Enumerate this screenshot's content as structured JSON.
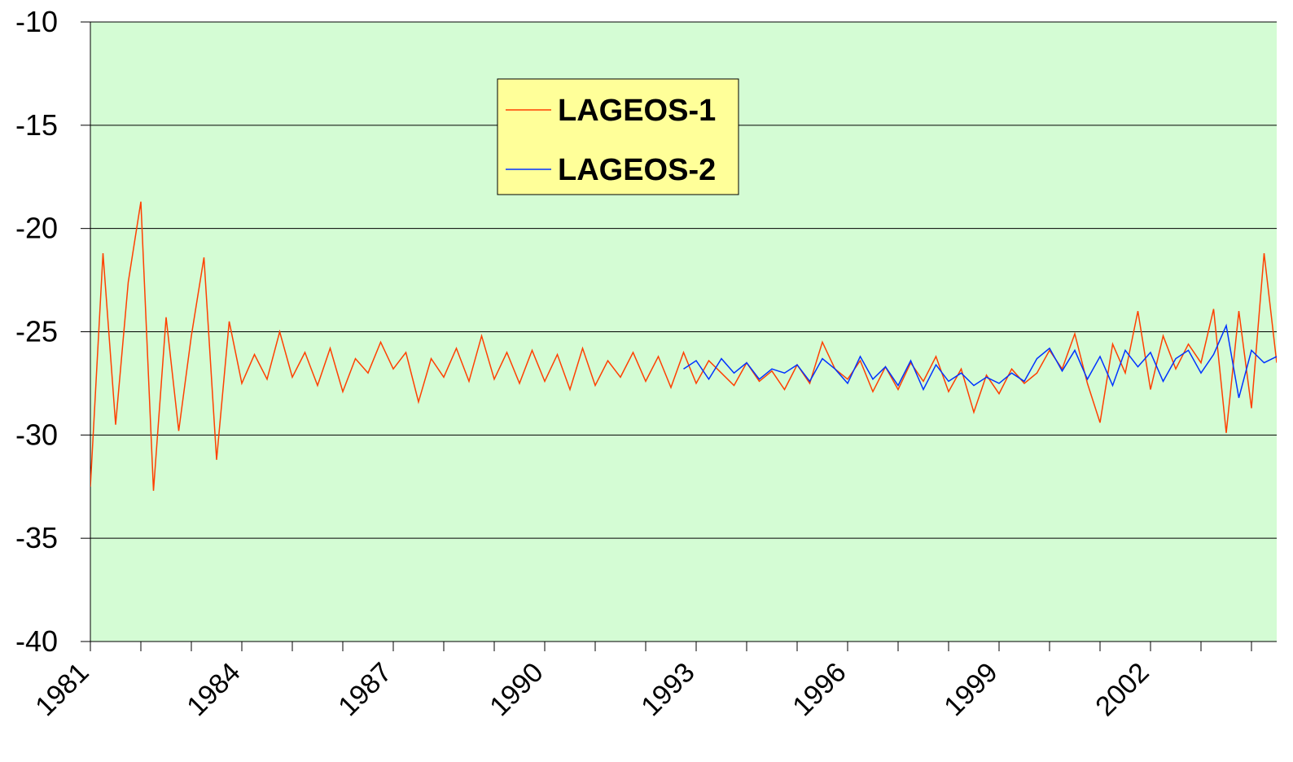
{
  "chart_data": {
    "type": "line",
    "xlim": [
      1981,
      2004.5
    ],
    "ylim": [
      -40,
      -10
    ],
    "xticks": [
      1981,
      1984,
      1987,
      1990,
      1993,
      1996,
      1999,
      2002
    ],
    "xticks_minor": [
      1982,
      1983,
      1985,
      1986,
      1988,
      1989,
      1991,
      1992,
      1994,
      1995,
      1997,
      1998,
      2000,
      2001,
      2003,
      2004
    ],
    "yticks": [
      -40,
      -35,
      -30,
      -25,
      -20,
      -15,
      -10
    ],
    "grid": true,
    "legend": "upper center",
    "background": "#d4fcd4",
    "series": [
      {
        "name": "LAGEOS-1",
        "color": "#ff4000",
        "x": [
          1981,
          1981.25,
          1981.5,
          1981.75,
          1982,
          1982.25,
          1982.5,
          1982.75,
          1983,
          1983.25,
          1983.5,
          1983.75,
          1984,
          1984.25,
          1984.5,
          1984.75,
          1985,
          1985.25,
          1985.5,
          1985.75,
          1986,
          1986.25,
          1986.5,
          1986.75,
          1987,
          1987.25,
          1987.5,
          1987.75,
          1988,
          1988.25,
          1988.5,
          1988.75,
          1989,
          1989.25,
          1989.5,
          1989.75,
          1990,
          1990.25,
          1990.5,
          1990.75,
          1991,
          1991.25,
          1991.5,
          1991.75,
          1992,
          1992.25,
          1992.5,
          1992.75,
          1993,
          1993.25,
          1993.5,
          1993.75,
          1994,
          1994.25,
          1994.5,
          1994.75,
          1995,
          1995.25,
          1995.5,
          1995.75,
          1996,
          1996.25,
          1996.5,
          1996.75,
          1997,
          1997.25,
          1997.5,
          1997.75,
          1998,
          1998.25,
          1998.5,
          1998.75,
          1999,
          1999.25,
          1999.5,
          1999.75,
          2000,
          2000.25,
          2000.5,
          2000.75,
          2001,
          2001.25,
          2001.5,
          2001.75,
          2002,
          2002.25,
          2002.5,
          2002.75,
          2003,
          2003.25,
          2003.5,
          2003.75,
          2004,
          2004.25,
          2004.5
        ],
        "values": [
          -32.5,
          -21.2,
          -29.5,
          -22.6,
          -18.7,
          -32.7,
          -24.3,
          -29.8,
          -25.2,
          -21.4,
          -31.2,
          -24.5,
          -27.5,
          -26.1,
          -27.3,
          -25.0,
          -27.2,
          -26.0,
          -27.6,
          -25.8,
          -27.9,
          -26.3,
          -27.0,
          -25.5,
          -26.8,
          -26.0,
          -28.4,
          -26.3,
          -27.2,
          -25.8,
          -27.4,
          -25.2,
          -27.3,
          -26.0,
          -27.5,
          -25.9,
          -27.4,
          -26.1,
          -27.8,
          -25.8,
          -27.6,
          -26.4,
          -27.2,
          -26.0,
          -27.4,
          -26.2,
          -27.7,
          -26.0,
          -27.5,
          -26.4,
          -27.0,
          -27.6,
          -26.5,
          -27.4,
          -26.9,
          -27.8,
          -26.6,
          -27.5,
          -25.5,
          -26.8,
          -27.3,
          -26.4,
          -27.9,
          -26.7,
          -27.8,
          -26.5,
          -27.4,
          -26.2,
          -27.9,
          -26.8,
          -28.9,
          -27.1,
          -28.0,
          -26.8,
          -27.5,
          -27.0,
          -25.9,
          -26.8,
          -25.1,
          -27.5,
          -29.4,
          -25.6,
          -27.0,
          -24.0,
          -27.8,
          -25.2,
          -26.8,
          -25.6,
          -26.5,
          -23.9,
          -29.9,
          -24.0,
          -28.7,
          -21.2,
          -26.5
        ]
      },
      {
        "name": "LAGEOS-2",
        "color": "#0033ff",
        "x": [
          1992.75,
          1993,
          1993.25,
          1993.5,
          1993.75,
          1994,
          1994.25,
          1994.5,
          1994.75,
          1995,
          1995.25,
          1995.5,
          1995.75,
          1996,
          1996.25,
          1996.5,
          1996.75,
          1997,
          1997.25,
          1997.5,
          1997.75,
          1998,
          1998.25,
          1998.5,
          1998.75,
          1999,
          1999.25,
          1999.5,
          1999.75,
          2000,
          2000.25,
          2000.5,
          2000.75,
          2001,
          2001.25,
          2001.5,
          2001.75,
          2002,
          2002.25,
          2002.5,
          2002.75,
          2003,
          2003.25,
          2003.5,
          2003.75,
          2004,
          2004.25,
          2004.5
        ],
        "values": [
          -26.8,
          -26.4,
          -27.3,
          -26.3,
          -27.0,
          -26.5,
          -27.3,
          -26.8,
          -27.0,
          -26.6,
          -27.4,
          -26.3,
          -26.8,
          -27.5,
          -26.2,
          -27.3,
          -26.7,
          -27.6,
          -26.4,
          -27.8,
          -26.6,
          -27.4,
          -27.0,
          -27.6,
          -27.2,
          -27.5,
          -27.0,
          -27.4,
          -26.3,
          -25.8,
          -26.9,
          -25.9,
          -27.3,
          -26.2,
          -27.6,
          -25.9,
          -26.7,
          -26.0,
          -27.4,
          -26.3,
          -25.9,
          -27.0,
          -26.1,
          -24.7,
          -28.2,
          -25.9,
          -26.5,
          -26.2
        ]
      }
    ]
  }
}
